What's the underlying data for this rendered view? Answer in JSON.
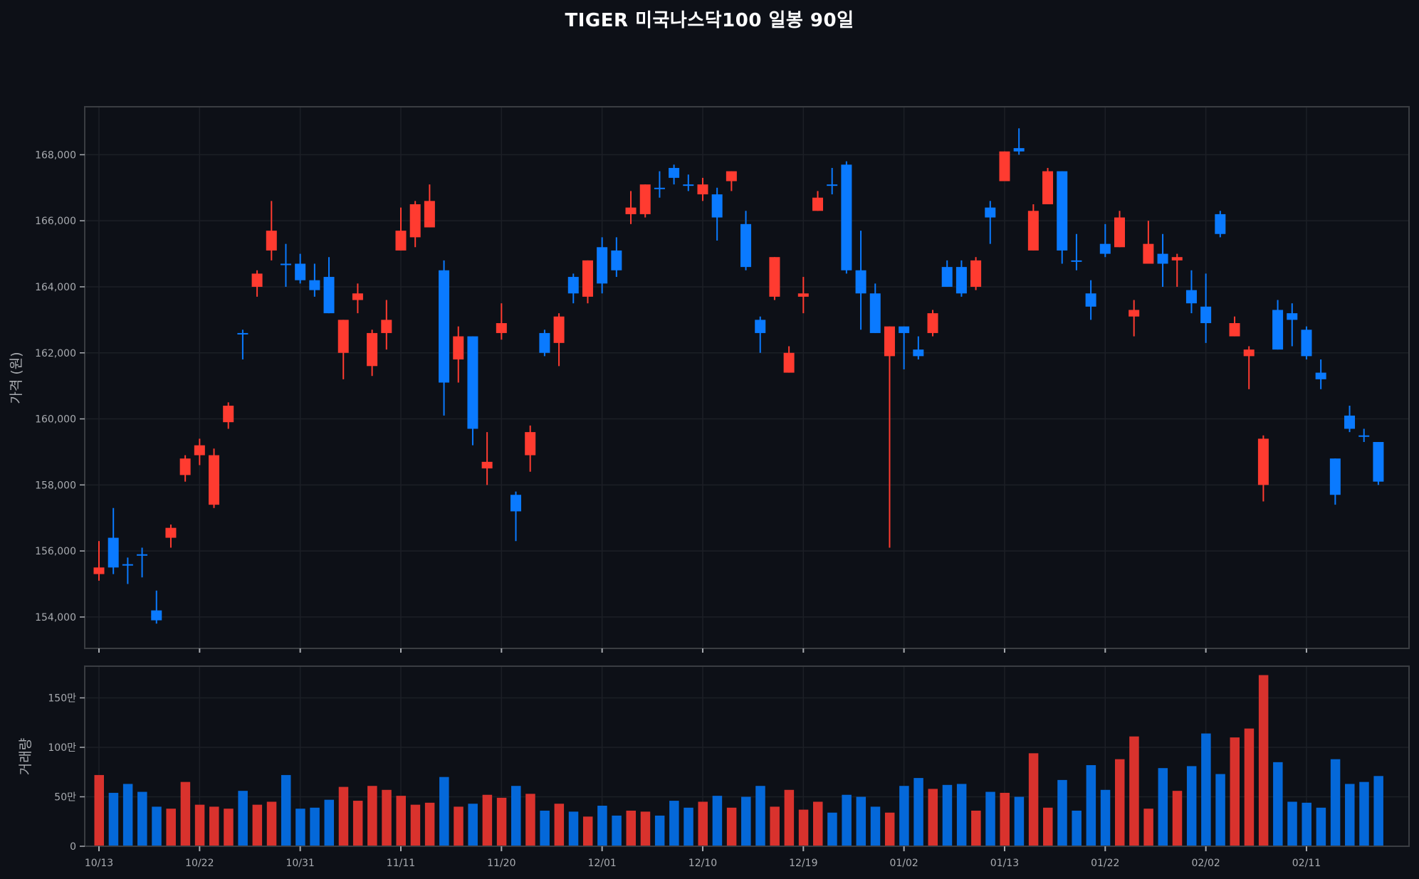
{
  "title": "TIGER 미국나스닥100 일봉 90일",
  "colors": {
    "background": "#0d1017",
    "up": "#ff3b30",
    "down": "#0a7aff",
    "volume_up": "#d9322d",
    "volume_down": "#0468d9",
    "frame": "#3a3d42",
    "grid": "#1c1f26",
    "tick_text": "#a8abb0"
  },
  "chart_data": [
    {
      "type": "candlestick",
      "title": "TIGER 미국나스닥100 일봉 90일",
      "ylabel": "가격 (원)",
      "xlabel": "",
      "ylim": [
        152900,
        169300
      ],
      "yticks": [
        154000,
        156000,
        158000,
        160000,
        162000,
        164000,
        166000,
        168000
      ],
      "ytick_labels": [
        "154,000",
        "156,000",
        "158,000",
        "160,000",
        "162,000",
        "164,000",
        "166,000",
        "168,000"
      ],
      "grid": true,
      "xtick_indices": [
        0,
        7,
        14,
        21,
        28,
        35,
        42,
        49,
        56,
        63,
        70,
        77,
        84
      ],
      "xtick_labels": [
        "10/13",
        "10/22",
        "10/31",
        "11/11",
        "11/20",
        "12/01",
        "12/10",
        "12/19",
        "01/02",
        "01/13",
        "01/22",
        "02/02",
        "02/11"
      ],
      "ohlc": [
        [
          155300,
          156300,
          155100,
          155500
        ],
        [
          156400,
          157300,
          155300,
          155500
        ],
        [
          155600,
          155800,
          155000,
          155600
        ],
        [
          155900,
          156100,
          155200,
          155900
        ],
        [
          154200,
          154800,
          153800,
          153900
        ],
        [
          156400,
          156800,
          156100,
          156700
        ],
        [
          158300,
          158900,
          158100,
          158800
        ],
        [
          158900,
          159400,
          158600,
          159200
        ],
        [
          157400,
          159100,
          157300,
          158900
        ],
        [
          159900,
          160500,
          159700,
          160400
        ],
        [
          162600,
          162700,
          161800,
          162600
        ],
        [
          164000,
          164500,
          163700,
          164400
        ],
        [
          165100,
          166600,
          164800,
          165700
        ],
        [
          164700,
          165300,
          164000,
          164700
        ],
        [
          164700,
          165000,
          164100,
          164200
        ],
        [
          164200,
          164700,
          163700,
          163900
        ],
        [
          164300,
          164900,
          163200,
          163200
        ],
        [
          162000,
          163000,
          161200,
          163000
        ],
        [
          163600,
          164100,
          163200,
          163800
        ],
        [
          161600,
          162700,
          161300,
          162600
        ],
        [
          162600,
          163600,
          162100,
          163000
        ],
        [
          165100,
          166400,
          165100,
          165700
        ],
        [
          165500,
          166600,
          165200,
          166500
        ],
        [
          165800,
          167100,
          165800,
          166600
        ],
        [
          164500,
          164800,
          160100,
          161100
        ],
        [
          161800,
          162800,
          161100,
          162500
        ],
        [
          162500,
          162500,
          159200,
          159700
        ],
        [
          158500,
          159600,
          158000,
          158700
        ],
        [
          162600,
          163500,
          162400,
          162900
        ],
        [
          157700,
          157800,
          156300,
          157200
        ],
        [
          158900,
          159800,
          158400,
          159600
        ],
        [
          162600,
          162700,
          161900,
          162000
        ],
        [
          162300,
          163200,
          161600,
          163100
        ],
        [
          164300,
          164400,
          163500,
          163800
        ],
        [
          163700,
          164800,
          163500,
          164800
        ],
        [
          165200,
          165500,
          163800,
          164100
        ],
        [
          165100,
          165500,
          164300,
          164500
        ],
        [
          166200,
          166900,
          165900,
          166400
        ],
        [
          166200,
          167100,
          166100,
          167100
        ],
        [
          167000,
          167500,
          166700,
          167000
        ],
        [
          167600,
          167700,
          167100,
          167300
        ],
        [
          167100,
          167400,
          166900,
          167100
        ],
        [
          166800,
          167300,
          166600,
          167100
        ],
        [
          166800,
          167000,
          165400,
          166100
        ],
        [
          167200,
          167500,
          166900,
          167500
        ],
        [
          165900,
          166300,
          164500,
          164600
        ],
        [
          163000,
          163100,
          162000,
          162600
        ],
        [
          163700,
          164900,
          163600,
          164900
        ],
        [
          161400,
          162200,
          161400,
          162000
        ],
        [
          163700,
          164300,
          163200,
          163800
        ],
        [
          166300,
          166900,
          166300,
          166700
        ],
        [
          167100,
          167600,
          166800,
          167100
        ],
        [
          167700,
          167800,
          164400,
          164500
        ],
        [
          164500,
          165700,
          162700,
          163800
        ],
        [
          163800,
          164100,
          162600,
          162600
        ],
        [
          161900,
          162800,
          156100,
          162800
        ],
        [
          162800,
          162800,
          161500,
          162600
        ],
        [
          162100,
          162500,
          161800,
          161900
        ],
        [
          162600,
          163300,
          162500,
          163200
        ],
        [
          164600,
          164800,
          164000,
          164000
        ],
        [
          164600,
          164800,
          163700,
          163800
        ],
        [
          164000,
          164900,
          163900,
          164800
        ],
        [
          166400,
          166600,
          165300,
          166100
        ],
        [
          167200,
          168100,
          167200,
          168100
        ],
        [
          168200,
          168800,
          168000,
          168100
        ],
        [
          165100,
          166500,
          165100,
          166300
        ],
        [
          166500,
          167600,
          166500,
          167500
        ],
        [
          167500,
          167500,
          164700,
          165100
        ],
        [
          164800,
          165600,
          164500,
          164800
        ],
        [
          163800,
          164200,
          163000,
          163400
        ],
        [
          165300,
          165900,
          164900,
          165000
        ],
        [
          165200,
          166300,
          165200,
          166100
        ],
        [
          163100,
          163600,
          162500,
          163300
        ],
        [
          164700,
          166000,
          164700,
          165300
        ],
        [
          165000,
          165600,
          164000,
          164700
        ],
        [
          164800,
          165000,
          164000,
          164900
        ],
        [
          163900,
          164500,
          163200,
          163500
        ],
        [
          163400,
          164400,
          162300,
          162900
        ],
        [
          166200,
          166300,
          165500,
          165600
        ],
        [
          162500,
          163100,
          162500,
          162900
        ],
        [
          161900,
          162200,
          160900,
          162100
        ],
        [
          158000,
          159500,
          157500,
          159400
        ],
        [
          163300,
          163600,
          162100,
          162100
        ],
        [
          163200,
          163500,
          162200,
          163000
        ],
        [
          162700,
          162800,
          161800,
          161900
        ],
        [
          161400,
          161800,
          160900,
          161200
        ],
        [
          158800,
          158800,
          157400,
          157700
        ],
        [
          160100,
          160400,
          159600,
          159700
        ],
        [
          159500,
          159700,
          159300,
          159500
        ],
        [
          159300,
          159300,
          158000,
          158100
        ]
      ]
    },
    {
      "type": "bar",
      "ylabel": "거래량",
      "ylim": [
        0,
        1820000
      ],
      "yticks": [
        0,
        500000,
        1000000,
        1500000
      ],
      "ytick_labels": [
        "0",
        "50만",
        "100만",
        "150만"
      ],
      "grid": true,
      "xtick_indices": [
        0,
        7,
        14,
        21,
        28,
        35,
        42,
        49,
        56,
        63,
        70,
        77,
        84
      ],
      "xtick_labels": [
        "10/13",
        "10/22",
        "10/31",
        "11/11",
        "11/20",
        "12/01",
        "12/10",
        "12/19",
        "01/02",
        "01/13",
        "01/22",
        "02/02",
        "02/11"
      ],
      "values": [
        720000,
        540000,
        630000,
        550000,
        400000,
        380000,
        650000,
        420000,
        400000,
        380000,
        560000,
        420000,
        450000,
        720000,
        380000,
        390000,
        470000,
        600000,
        460000,
        610000,
        570000,
        510000,
        420000,
        440000,
        700000,
        400000,
        430000,
        520000,
        490000,
        610000,
        530000,
        360000,
        430000,
        350000,
        300000,
        410000,
        310000,
        360000,
        350000,
        310000,
        460000,
        390000,
        450000,
        510000,
        390000,
        500000,
        610000,
        400000,
        570000,
        370000,
        450000,
        340000,
        520000,
        500000,
        400000,
        340000,
        610000,
        690000,
        580000,
        620000,
        630000,
        360000,
        550000,
        540000,
        500000,
        940000,
        390000,
        670000,
        360000,
        820000,
        570000,
        880000,
        1110000,
        380000,
        790000,
        560000,
        810000,
        1140000,
        730000,
        1100000,
        1190000,
        1730000,
        850000,
        450000,
        440000,
        390000,
        880000,
        630000,
        650000,
        710000
      ]
    }
  ]
}
